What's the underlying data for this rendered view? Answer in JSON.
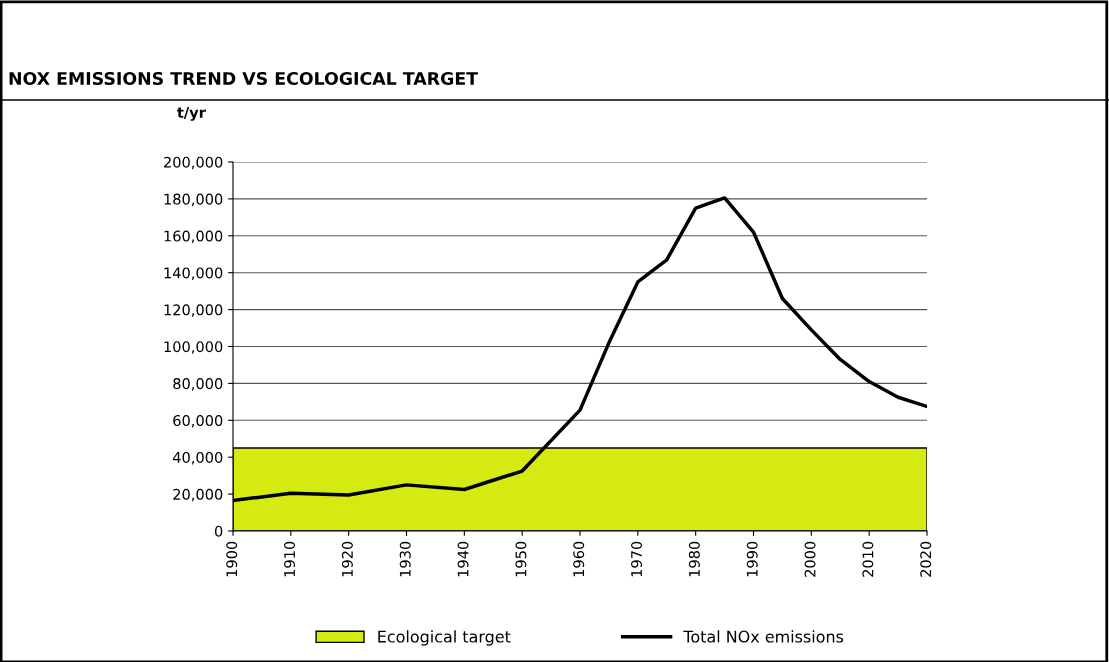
{
  "chart_data": {
    "type": "line",
    "title": "NOX EMISSIONS TREND VS ECOLOGICAL TARGET",
    "ylabel": "t/yr",
    "x": [
      1900,
      1910,
      1920,
      1930,
      1940,
      1950,
      1960,
      1965,
      1970,
      1975,
      1980,
      1985,
      1990,
      1995,
      2000,
      2005,
      2010,
      2015,
      2020
    ],
    "series": [
      {
        "name": "Total NOx emissions",
        "color": "#000000",
        "values": [
          16500,
          20500,
          19500,
          25000,
          22500,
          32500,
          65500,
          102000,
          135000,
          147000,
          175000,
          180500,
          162000,
          126000,
          109000,
          93000,
          81000,
          72500,
          67500
        ]
      }
    ],
    "bands": [
      {
        "axis": "y",
        "from": 0,
        "to": 45000,
        "label": "Ecological target",
        "color": "#d4ea10"
      }
    ],
    "xlim": [
      1900,
      2020
    ],
    "xticks": [
      1900,
      1910,
      1920,
      1930,
      1940,
      1950,
      1960,
      1970,
      1980,
      1990,
      2000,
      2010,
      2020
    ],
    "ylim": [
      0,
      200000
    ],
    "yticks": [
      {
        "value": 0,
        "label": "0"
      },
      {
        "value": 20000,
        "label": "20,000"
      },
      {
        "value": 40000,
        "label": "40,000"
      },
      {
        "value": 60000,
        "label": "60,000"
      },
      {
        "value": 80000,
        "label": "80,000"
      },
      {
        "value": 100000,
        "label": "100,000"
      },
      {
        "value": 120000,
        "label": "120,000"
      },
      {
        "value": 140000,
        "label": "140,000"
      },
      {
        "value": 160000,
        "label": "160,000"
      },
      {
        "value": 180000,
        "label": "180,000"
      },
      {
        "value": 200000,
        "label": "200,000"
      }
    ],
    "grid": "y",
    "legend": "bottom",
    "marker": "none",
    "line_style": "solid"
  }
}
